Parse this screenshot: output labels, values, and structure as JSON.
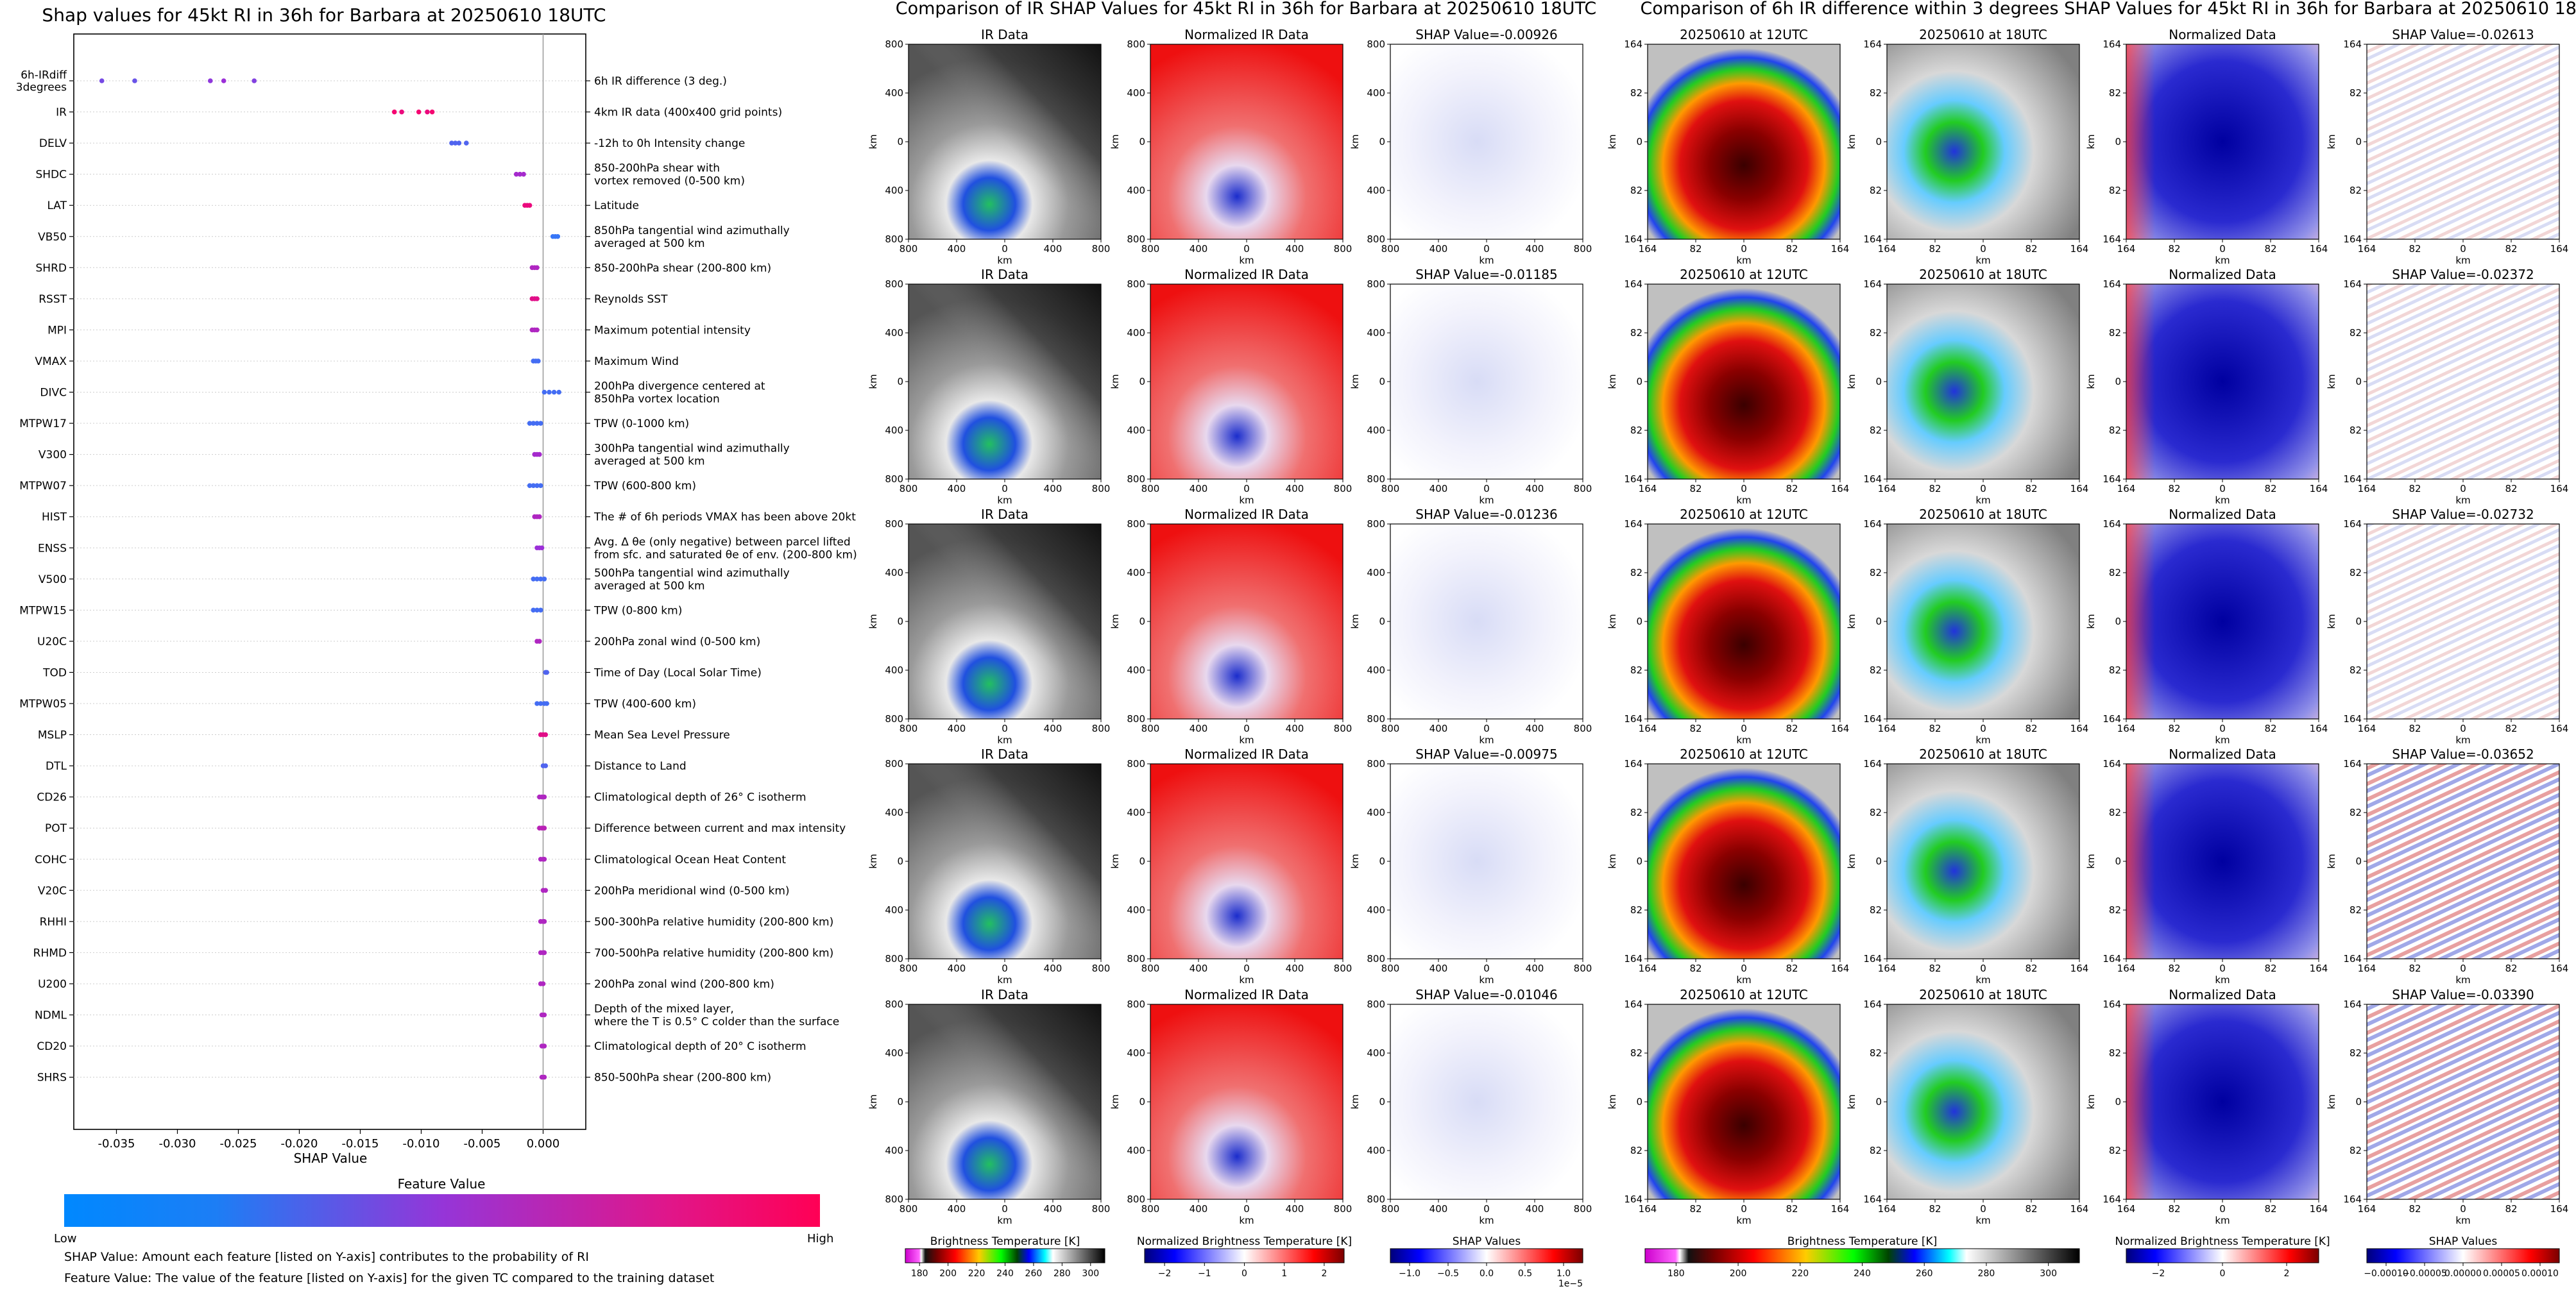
{
  "colors": {
    "low": "#1e88ff",
    "mid": "#9b2fd8",
    "high": "#ff0066",
    "axis": "#000000",
    "zero_line": "#999999",
    "row_line": "#cccccc"
  },
  "beeswarm": {
    "title": "Shap values for 45kt RI in 36h for Barbara at 20250610 18UTC",
    "xlabel": "SHAP Value",
    "xticks": [
      "-0.035",
      "-0.030",
      "-0.025",
      "-0.020",
      "-0.015",
      "-0.010",
      "-0.005",
      "0.000"
    ],
    "colorbar_label": "Feature Value",
    "colorbar_low": "Low",
    "colorbar_high": "High",
    "footnote_1": "SHAP Value: Amount each feature [listed on Y-axis] contributes to the probability of RI",
    "footnote_2": "Feature Value: The value of the feature [listed on Y-axis] for the given TC compared to the training dataset"
  },
  "panel_group_titles": {
    "left": "Comparison of IR SHAP Values for 45kt RI in 36h for Barbara at 20250610 18UTC",
    "right": "Comparison of 6h IR difference within 3 degrees SHAP Values for 45kt RI in 36h for Barbara at 20250610 18UTC"
  },
  "axis_labels": {
    "km": "km",
    "km_ticks_800": [
      "800",
      "400",
      "0",
      "400",
      "800"
    ],
    "km_ticks_164": [
      "164",
      "82",
      "0",
      "82",
      "164"
    ]
  },
  "panel_titles": {
    "ir": "IR Data",
    "norm_ir": "Normalized IR Data",
    "t12": "20250610 at 12UTC",
    "t18": "20250610 at 18UTC",
    "norm_data": "Normalized Data"
  },
  "colorbars": {
    "bt_label": "Brightness Temperature [K]",
    "bt_ticks": [
      "180",
      "200",
      "220",
      "240",
      "260",
      "280",
      "300"
    ],
    "nbt_label": "Normalized Brightness Temperature [K]",
    "nbt_ticks_1": [
      "−2",
      "−1",
      "0",
      "1",
      "2"
    ],
    "nbt_ticks_2": [
      "−2",
      "0",
      "2"
    ],
    "shap_label": "SHAP Values",
    "shap_ticks_1": [
      "−1.0",
      "−0.5",
      "0.0",
      "0.5",
      "1.0"
    ],
    "shap_exp": "1e−5",
    "shap_ticks_2": [
      "−0.00010",
      "−0.00005",
      "0.00000",
      "0.00005",
      "0.00010"
    ]
  },
  "chart_data": [
    {
      "type": "scatter",
      "title": "Shap values for 45kt RI in 36h for Barbara at 20250610 18UTC",
      "xlabel": "SHAP Value",
      "xlim": [
        -0.0385,
        0.0035
      ],
      "legend": "bottom (horizontal colorbar, Low to High)",
      "series": [
        {
          "feature": "6h-IRdiff\n3degrees",
          "desc": "6h IR difference (3 deg.)",
          "points": [
            [
              -0.0362,
              0.35
            ],
            [
              -0.0335,
              0.3
            ],
            [
              -0.0273,
              0.45
            ],
            [
              -0.0262,
              0.5
            ],
            [
              -0.0237,
              0.4
            ]
          ]
        },
        {
          "feature": "IR",
          "desc": "4km IR data (400x400 grid points)",
          "points": [
            [
              -0.0122,
              0.95
            ],
            [
              -0.0116,
              0.9
            ],
            [
              -0.0102,
              0.95
            ],
            [
              -0.0095,
              0.9
            ],
            [
              -0.0091,
              0.95
            ]
          ]
        },
        {
          "feature": "DELV",
          "desc": "-12h to 0h Intensity change",
          "points": [
            [
              -0.0075,
              0.2
            ],
            [
              -0.0072,
              0.2
            ],
            [
              -0.0069,
              0.2
            ],
            [
              -0.0063,
              0.2
            ]
          ]
        },
        {
          "feature": "SHDC",
          "desc": "850-200hPa shear with\nvortex removed (0-500 km)",
          "points": [
            [
              -0.0022,
              0.55
            ],
            [
              -0.0019,
              0.55
            ],
            [
              -0.0016,
              0.55
            ]
          ]
        },
        {
          "feature": "LAT",
          "desc": "Latitude",
          "points": [
            [
              -0.0015,
              0.9
            ],
            [
              -0.0013,
              0.9
            ],
            [
              -0.0011,
              0.9
            ]
          ]
        },
        {
          "feature": "VB50",
          "desc": "850hPa tangential wind azimuthally\naveraged at 500 km",
          "points": [
            [
              0.0008,
              0.1
            ],
            [
              0.001,
              0.1
            ],
            [
              0.0012,
              0.1
            ]
          ]
        },
        {
          "feature": "SHRD",
          "desc": "850-200hPa shear (200-800 km)",
          "points": [
            [
              -0.0009,
              0.6
            ],
            [
              -0.0007,
              0.6
            ],
            [
              -0.0005,
              0.6
            ]
          ]
        },
        {
          "feature": "RSST",
          "desc": "Reynolds SST",
          "points": [
            [
              -0.0009,
              0.85
            ],
            [
              -0.0007,
              0.85
            ],
            [
              -0.0005,
              0.85
            ]
          ]
        },
        {
          "feature": "MPI",
          "desc": "Maximum potential intensity",
          "points": [
            [
              -0.0009,
              0.6
            ],
            [
              -0.0007,
              0.6
            ],
            [
              -0.0005,
              0.6
            ]
          ]
        },
        {
          "feature": "VMAX",
          "desc": "Maximum Wind",
          "points": [
            [
              -0.0008,
              0.15
            ],
            [
              -0.0006,
              0.15
            ],
            [
              -0.0004,
              0.15
            ]
          ]
        },
        {
          "feature": "DIVC",
          "desc": "200hPa divergence centered at\n850hPa vortex location",
          "points": [
            [
              0.0001,
              0.15
            ],
            [
              0.0005,
              0.15
            ],
            [
              0.0009,
              0.15
            ],
            [
              0.0013,
              0.15
            ]
          ]
        },
        {
          "feature": "MTPW17",
          "desc": "TPW (0-1000 km)",
          "points": [
            [
              -0.0011,
              0.15
            ],
            [
              -0.0008,
              0.15
            ],
            [
              -0.0005,
              0.15
            ],
            [
              -0.0002,
              0.15
            ]
          ]
        },
        {
          "feature": "V300",
          "desc": "300hPa tangential wind azimuthally\naveraged at 500 km",
          "points": [
            [
              -0.0007,
              0.55
            ],
            [
              -0.0005,
              0.55
            ],
            [
              -0.0003,
              0.55
            ]
          ]
        },
        {
          "feature": "MTPW07",
          "desc": "TPW (600-800 km)",
          "points": [
            [
              -0.0011,
              0.15
            ],
            [
              -0.0008,
              0.15
            ],
            [
              -0.0005,
              0.15
            ],
            [
              -0.0002,
              0.15
            ]
          ]
        },
        {
          "feature": "HIST",
          "desc": "The # of 6h periods VMAX has been above 20kt",
          "points": [
            [
              -0.0007,
              0.6
            ],
            [
              -0.0005,
              0.6
            ],
            [
              -0.0003,
              0.6
            ]
          ]
        },
        {
          "feature": "ENSS",
          "desc": "Avg. Δ θe (only negative) between parcel lifted\nfrom sfc. and saturated θe of env. (200-800 km)",
          "points": [
            [
              -0.0005,
              0.5
            ],
            [
              -0.0003,
              0.5
            ],
            [
              -0.0001,
              0.5
            ]
          ]
        },
        {
          "feature": "V500",
          "desc": "500hPa tangential wind azimuthally\naveraged at 500 km",
          "points": [
            [
              -0.0008,
              0.15
            ],
            [
              -0.0005,
              0.15
            ],
            [
              -0.0002,
              0.15
            ],
            [
              0.0001,
              0.15
            ]
          ]
        },
        {
          "feature": "MTPW15",
          "desc": "TPW (0-800 km)",
          "points": [
            [
              -0.0008,
              0.15
            ],
            [
              -0.0005,
              0.15
            ],
            [
              -0.0002,
              0.15
            ]
          ]
        },
        {
          "feature": "U20C",
          "desc": "200hPa zonal wind (0-500 km)",
          "points": [
            [
              -0.0005,
              0.6
            ],
            [
              -0.0003,
              0.6
            ]
          ]
        },
        {
          "feature": "TOD",
          "desc": "Time of Day (Local Solar Time)",
          "points": [
            [
              0.0002,
              0.2
            ],
            [
              0.0003,
              0.2
            ]
          ]
        },
        {
          "feature": "MTPW05",
          "desc": "TPW (400-600 km)",
          "points": [
            [
              -0.0005,
              0.15
            ],
            [
              -0.0002,
              0.15
            ],
            [
              0.0001,
              0.15
            ],
            [
              0.0003,
              0.15
            ]
          ]
        },
        {
          "feature": "MSLP",
          "desc": "Mean Sea Level Pressure",
          "points": [
            [
              -0.0002,
              0.85
            ],
            [
              0.0,
              0.85
            ],
            [
              0.0002,
              0.85
            ]
          ]
        },
        {
          "feature": "DTL",
          "desc": "Distance to Land",
          "points": [
            [
              0.0,
              0.2
            ],
            [
              0.0002,
              0.2
            ]
          ]
        },
        {
          "feature": "CD26",
          "desc": "Climatological depth of 26° C isotherm",
          "points": [
            [
              -0.0003,
              0.6
            ],
            [
              -0.0001,
              0.6
            ],
            [
              0.0001,
              0.6
            ]
          ]
        },
        {
          "feature": "POT",
          "desc": "Difference between current and max intensity",
          "points": [
            [
              -0.0003,
              0.65
            ],
            [
              -0.0001,
              0.65
            ],
            [
              0.0001,
              0.65
            ]
          ]
        },
        {
          "feature": "COHC",
          "desc": "Climatological Ocean Heat Content",
          "points": [
            [
              -0.0002,
              0.6
            ],
            [
              0.0,
              0.6
            ],
            [
              0.0001,
              0.6
            ]
          ]
        },
        {
          "feature": "V20C",
          "desc": "200hPa meridional wind (0-500 km)",
          "points": [
            [
              0.0,
              0.6
            ],
            [
              0.0002,
              0.6
            ]
          ]
        },
        {
          "feature": "RHHI",
          "desc": "500-300hPa relative humidity (200-800 km)",
          "points": [
            [
              -0.0002,
              0.6
            ],
            [
              0.0,
              0.6
            ],
            [
              0.0001,
              0.6
            ]
          ]
        },
        {
          "feature": "RHMD",
          "desc": "700-500hPa relative humidity (200-800 km)",
          "points": [
            [
              -0.0002,
              0.6
            ],
            [
              0.0,
              0.6
            ],
            [
              0.0001,
              0.6
            ]
          ]
        },
        {
          "feature": "U200",
          "desc": "200hPa zonal wind (200-800 km)",
          "points": [
            [
              -0.0002,
              0.6
            ],
            [
              0.0,
              0.6
            ]
          ]
        },
        {
          "feature": "NDML",
          "desc": "Depth of the mixed layer,\nwhere the T is 0.5° C colder than the surface",
          "points": [
            [
              -0.0001,
              0.6
            ],
            [
              0.0001,
              0.6
            ]
          ]
        },
        {
          "feature": "CD20",
          "desc": "Climatological depth of 20° C isotherm",
          "points": [
            [
              -0.0001,
              0.6
            ],
            [
              0.0001,
              0.6
            ]
          ]
        },
        {
          "feature": "SHRS",
          "desc": "850-500hPa shear (200-800 km)",
          "points": [
            [
              -0.0001,
              0.6
            ],
            [
              0.0001,
              0.6
            ]
          ]
        }
      ]
    },
    {
      "type": "heatmap",
      "group": "left",
      "rows": [
        {
          "shap_title": "SHAP Value=-0.00926"
        },
        {
          "shap_title": "SHAP Value=-0.01185"
        },
        {
          "shap_title": "SHAP Value=-0.01236"
        },
        {
          "shap_title": "SHAP Value=-0.00975"
        },
        {
          "shap_title": "SHAP Value=-0.01046"
        }
      ]
    },
    {
      "type": "heatmap",
      "group": "right",
      "rows": [
        {
          "shap_title": "SHAP Value=-0.02613"
        },
        {
          "shap_title": "SHAP Value=-0.02372"
        },
        {
          "shap_title": "SHAP Value=-0.02732"
        },
        {
          "shap_title": "SHAP Value=-0.03652"
        },
        {
          "shap_title": "SHAP Value=-0.03390"
        }
      ]
    }
  ]
}
